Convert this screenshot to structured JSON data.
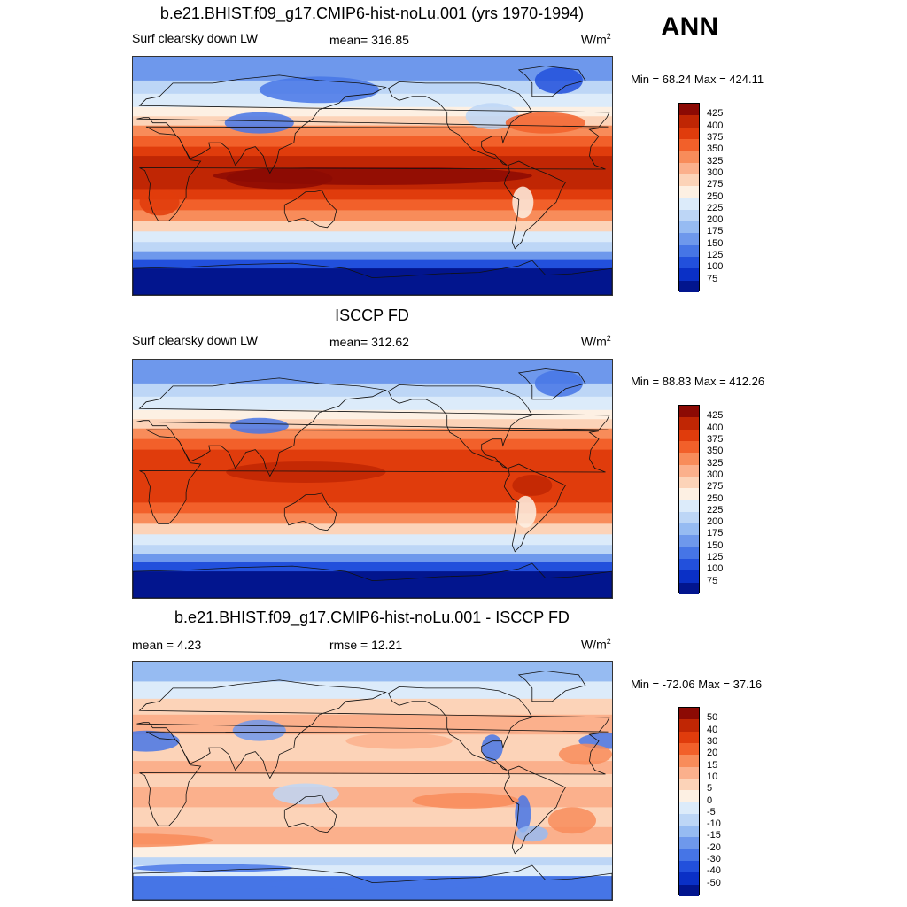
{
  "season": "ANN",
  "panels": [
    {
      "title": "b.e21.BHIST.f09_g17.CMIP6-hist-noLu.001 (yrs 1970-1994)",
      "left": "Surf clearsky down LW",
      "center": "mean= 316.85",
      "units": "W/m",
      "units_sup": "2",
      "minmax": "Min =  68.24 Max = 424.11",
      "levels": [
        "425",
        "400",
        "375",
        "350",
        "325",
        "300",
        "275",
        "250",
        "225",
        "200",
        "175",
        "150",
        "125",
        "100",
        "75"
      ],
      "colors": [
        "#8c0a04",
        "#c02604",
        "#e03c0c",
        "#f2602a",
        "#f88c5a",
        "#fbb08c",
        "#fcd3b8",
        "#fdf0e3",
        "#dcebfa",
        "#bdd6f6",
        "#96bbf2",
        "#6e98ec",
        "#4675e6",
        "#2250dc",
        "#0a30c6",
        "#02158e"
      ],
      "type": "abs"
    },
    {
      "title": "ISCCP FD",
      "left": "Surf clearsky down LW",
      "center": "mean= 312.62",
      "units": "W/m",
      "units_sup": "2",
      "minmax": "Min =  88.83 Max = 412.26",
      "levels": [
        "425",
        "400",
        "375",
        "350",
        "325",
        "300",
        "275",
        "250",
        "225",
        "200",
        "175",
        "150",
        "125",
        "100",
        "75"
      ],
      "colors": [
        "#8c0a04",
        "#c02604",
        "#e03c0c",
        "#f2602a",
        "#f88c5a",
        "#fbb08c",
        "#fcd3b8",
        "#fdf0e3",
        "#dcebfa",
        "#bdd6f6",
        "#96bbf2",
        "#6e98ec",
        "#4675e6",
        "#2250dc",
        "#0a30c6",
        "#02158e"
      ],
      "type": "abs2"
    },
    {
      "title": "b.e21.BHIST.f09_g17.CMIP6-hist-noLu.001 - ISCCP FD",
      "left": "mean =   4.23",
      "center": "rmse =  12.21",
      "units": "W/m",
      "units_sup": "2",
      "minmax": "Min = -72.06 Max =  37.16",
      "levels": [
        "50",
        "40",
        "30",
        "20",
        "15",
        "10",
        "5",
        "0",
        "-5",
        "-10",
        "-15",
        "-20",
        "-30",
        "-40",
        "-50"
      ],
      "colors": [
        "#8c0a04",
        "#c02604",
        "#e03c0c",
        "#f2602a",
        "#f88c5a",
        "#fbb08c",
        "#fcd3b8",
        "#fdf0e3",
        "#dcebfa",
        "#bdd6f6",
        "#96bbf2",
        "#6e98ec",
        "#4675e6",
        "#2250dc",
        "#0a30c6",
        "#02158e"
      ],
      "type": "diff"
    }
  ]
}
